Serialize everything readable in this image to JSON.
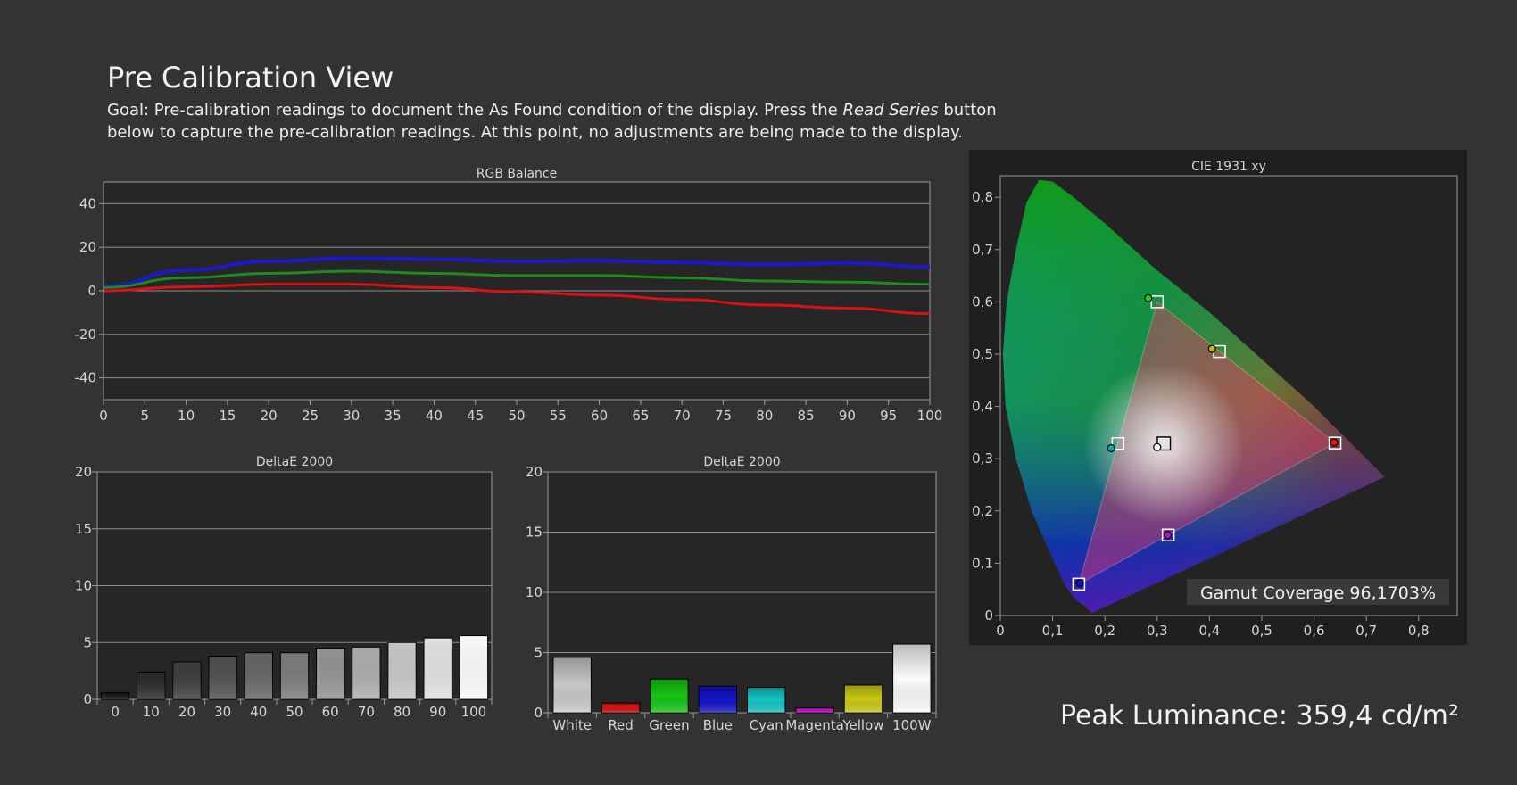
{
  "page": {
    "title": "Pre Calibration View",
    "goal_prefix": "Goal: Pre-calibration readings to document the As Found condition of the display. Press the ",
    "goal_emphasis": "Read Series",
    "goal_suffix": " button below to capture the pre-calibration readings. At this point, no adjustments are being made to the display.",
    "peak_luminance": "Peak Luminance: 359,4 cd/m²"
  },
  "chart_data": [
    {
      "type": "line",
      "title": "RGB Balance",
      "x": [
        0,
        10,
        20,
        30,
        40,
        50,
        60,
        70,
        80,
        90,
        100
      ],
      "x_ticks": [
        0,
        5,
        10,
        15,
        20,
        25,
        30,
        35,
        40,
        45,
        50,
        55,
        60,
        65,
        70,
        75,
        80,
        85,
        90,
        95,
        100
      ],
      "y_ticks": [
        40,
        20,
        0,
        -20,
        -40
      ],
      "ylim": [
        -50,
        50
      ],
      "grid": true,
      "series": [
        {
          "color": "#1a1acc",
          "values": [
            2,
            9.5,
            13.5,
            15,
            14.5,
            13.5,
            13.8,
            13,
            12,
            12.8,
            11
          ]
        },
        {
          "color": "#1f8a1f",
          "values": [
            1.5,
            6,
            8,
            9,
            8,
            7,
            7,
            6,
            4.5,
            4,
            3
          ]
        },
        {
          "color": "#dd1111",
          "values": [
            0,
            1.8,
            3,
            3,
            1.5,
            -0.5,
            -2,
            -4,
            -6.5,
            -8,
            -10.5
          ]
        }
      ]
    },
    {
      "type": "bar",
      "title": "DeltaE 2000",
      "categories": [
        "0",
        "10",
        "20",
        "30",
        "40",
        "50",
        "60",
        "70",
        "80",
        "90",
        "100"
      ],
      "values": [
        0.6,
        2.4,
        3.3,
        3.8,
        4.1,
        4.1,
        4.5,
        4.6,
        5.0,
        5.4,
        5.6
      ],
      "colors": [
        "#161616",
        "#2a2a2a",
        "#3c3c3c",
        "#4e4e4e",
        "#646464",
        "#7a7a7a",
        "#929292",
        "#acacac",
        "#c6c6c6",
        "#e0e0e0",
        "#fafafa"
      ],
      "ylim": [
        0,
        20
      ],
      "y_ticks": [
        20,
        15,
        10,
        5,
        0
      ]
    },
    {
      "type": "bar",
      "title": "DeltaE 2000",
      "categories": [
        "White",
        "Red",
        "Green",
        "Blue",
        "Cyan",
        "Magenta",
        "Yellow",
        "100W"
      ],
      "values": [
        4.6,
        0.8,
        2.8,
        2.2,
        2.1,
        0.4,
        2.3,
        5.7
      ],
      "colors": [
        "#c8c8c8",
        "#d41414",
        "#14c414",
        "#1414c8",
        "#14c4c4",
        "#c414c4",
        "#c8c814",
        "#fafafa"
      ],
      "ylim": [
        0,
        20
      ],
      "y_ticks": [
        20,
        15,
        10,
        5,
        0
      ]
    },
    {
      "type": "scatter",
      "title": "CIE 1931 xy",
      "xlim": [
        0,
        0.85
      ],
      "ylim": [
        0,
        0.85
      ],
      "x_ticks": [
        "0",
        "0,1",
        "0,2",
        "0,3",
        "0,4",
        "0,5",
        "0,6",
        "0,7",
        "0,8"
      ],
      "y_ticks": [
        "0,8",
        "0,7",
        "0,6",
        "0,5",
        "0,4",
        "0,3",
        "0,2",
        "0,1",
        "0"
      ],
      "targets": [
        {
          "name": "red",
          "x": 0.64,
          "y": 0.33
        },
        {
          "name": "green",
          "x": 0.3,
          "y": 0.6
        },
        {
          "name": "blue",
          "x": 0.15,
          "y": 0.06
        },
        {
          "name": "cyan",
          "x": 0.225,
          "y": 0.329
        },
        {
          "name": "yellow",
          "x": 0.419,
          "y": 0.505
        },
        {
          "name": "magenta",
          "x": 0.321,
          "y": 0.154
        },
        {
          "name": "white",
          "x": 0.3127,
          "y": 0.329
        }
      ],
      "measured": [
        {
          "name": "red",
          "x": 0.638,
          "y": 0.331
        },
        {
          "name": "green",
          "x": 0.283,
          "y": 0.607
        },
        {
          "name": "blue",
          "x": 0.152,
          "y": 0.062
        },
        {
          "name": "cyan",
          "x": 0.212,
          "y": 0.32
        },
        {
          "name": "yellow",
          "x": 0.405,
          "y": 0.51
        },
        {
          "name": "magenta",
          "x": 0.32,
          "y": 0.154
        },
        {
          "name": "white",
          "x": 0.3,
          "y": 0.322
        }
      ],
      "gamut_label": "Gamut Coverage 96,1703%"
    }
  ]
}
